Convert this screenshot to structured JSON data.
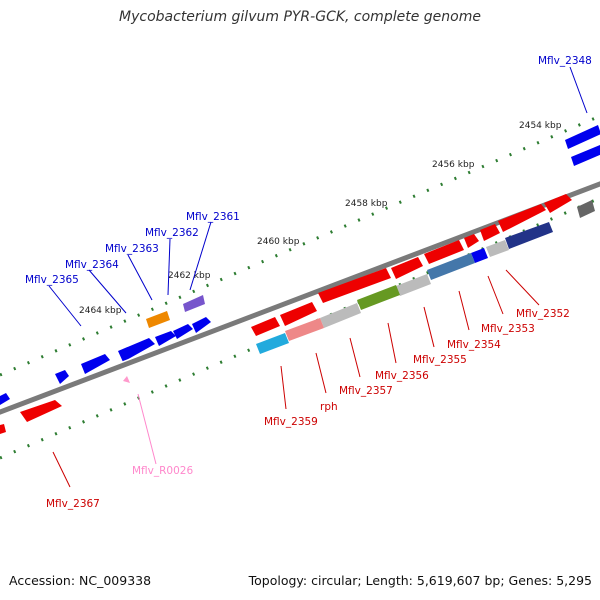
{
  "title": "Mycobacterium gilvum PYR-GCK, complete genome",
  "footer": {
    "accession": "Accession: NC_009338",
    "summary": "Topology: circular; Length: 5,619,607 bp; Genes: 5,295"
  },
  "colors": {
    "backbone": "#7a7a7a",
    "tick": "#2e7d32",
    "forward_label": "#0000cc",
    "reverse_label": "#cc0000",
    "rna_label": "#ff88cc"
  },
  "scale_labels": [
    "2454 kbp",
    "2456 kbp",
    "2458 kbp",
    "2460 kbp",
    "2462 kbp",
    "2464 kbp"
  ],
  "gene_labels": {
    "forward": [
      "Mflv_2348",
      "Mflv_2361",
      "Mflv_2362",
      "Mflv_2363",
      "Mflv_2364",
      "Mflv_2365"
    ],
    "reverse": [
      "Mflv_2352",
      "Mflv_2353",
      "Mflv_2354",
      "Mflv_2355",
      "Mflv_2356",
      "Mflv_2357",
      "rph",
      "Mflv_2359",
      "Mflv_2367"
    ],
    "rna": [
      "Mflv_R0026"
    ]
  }
}
